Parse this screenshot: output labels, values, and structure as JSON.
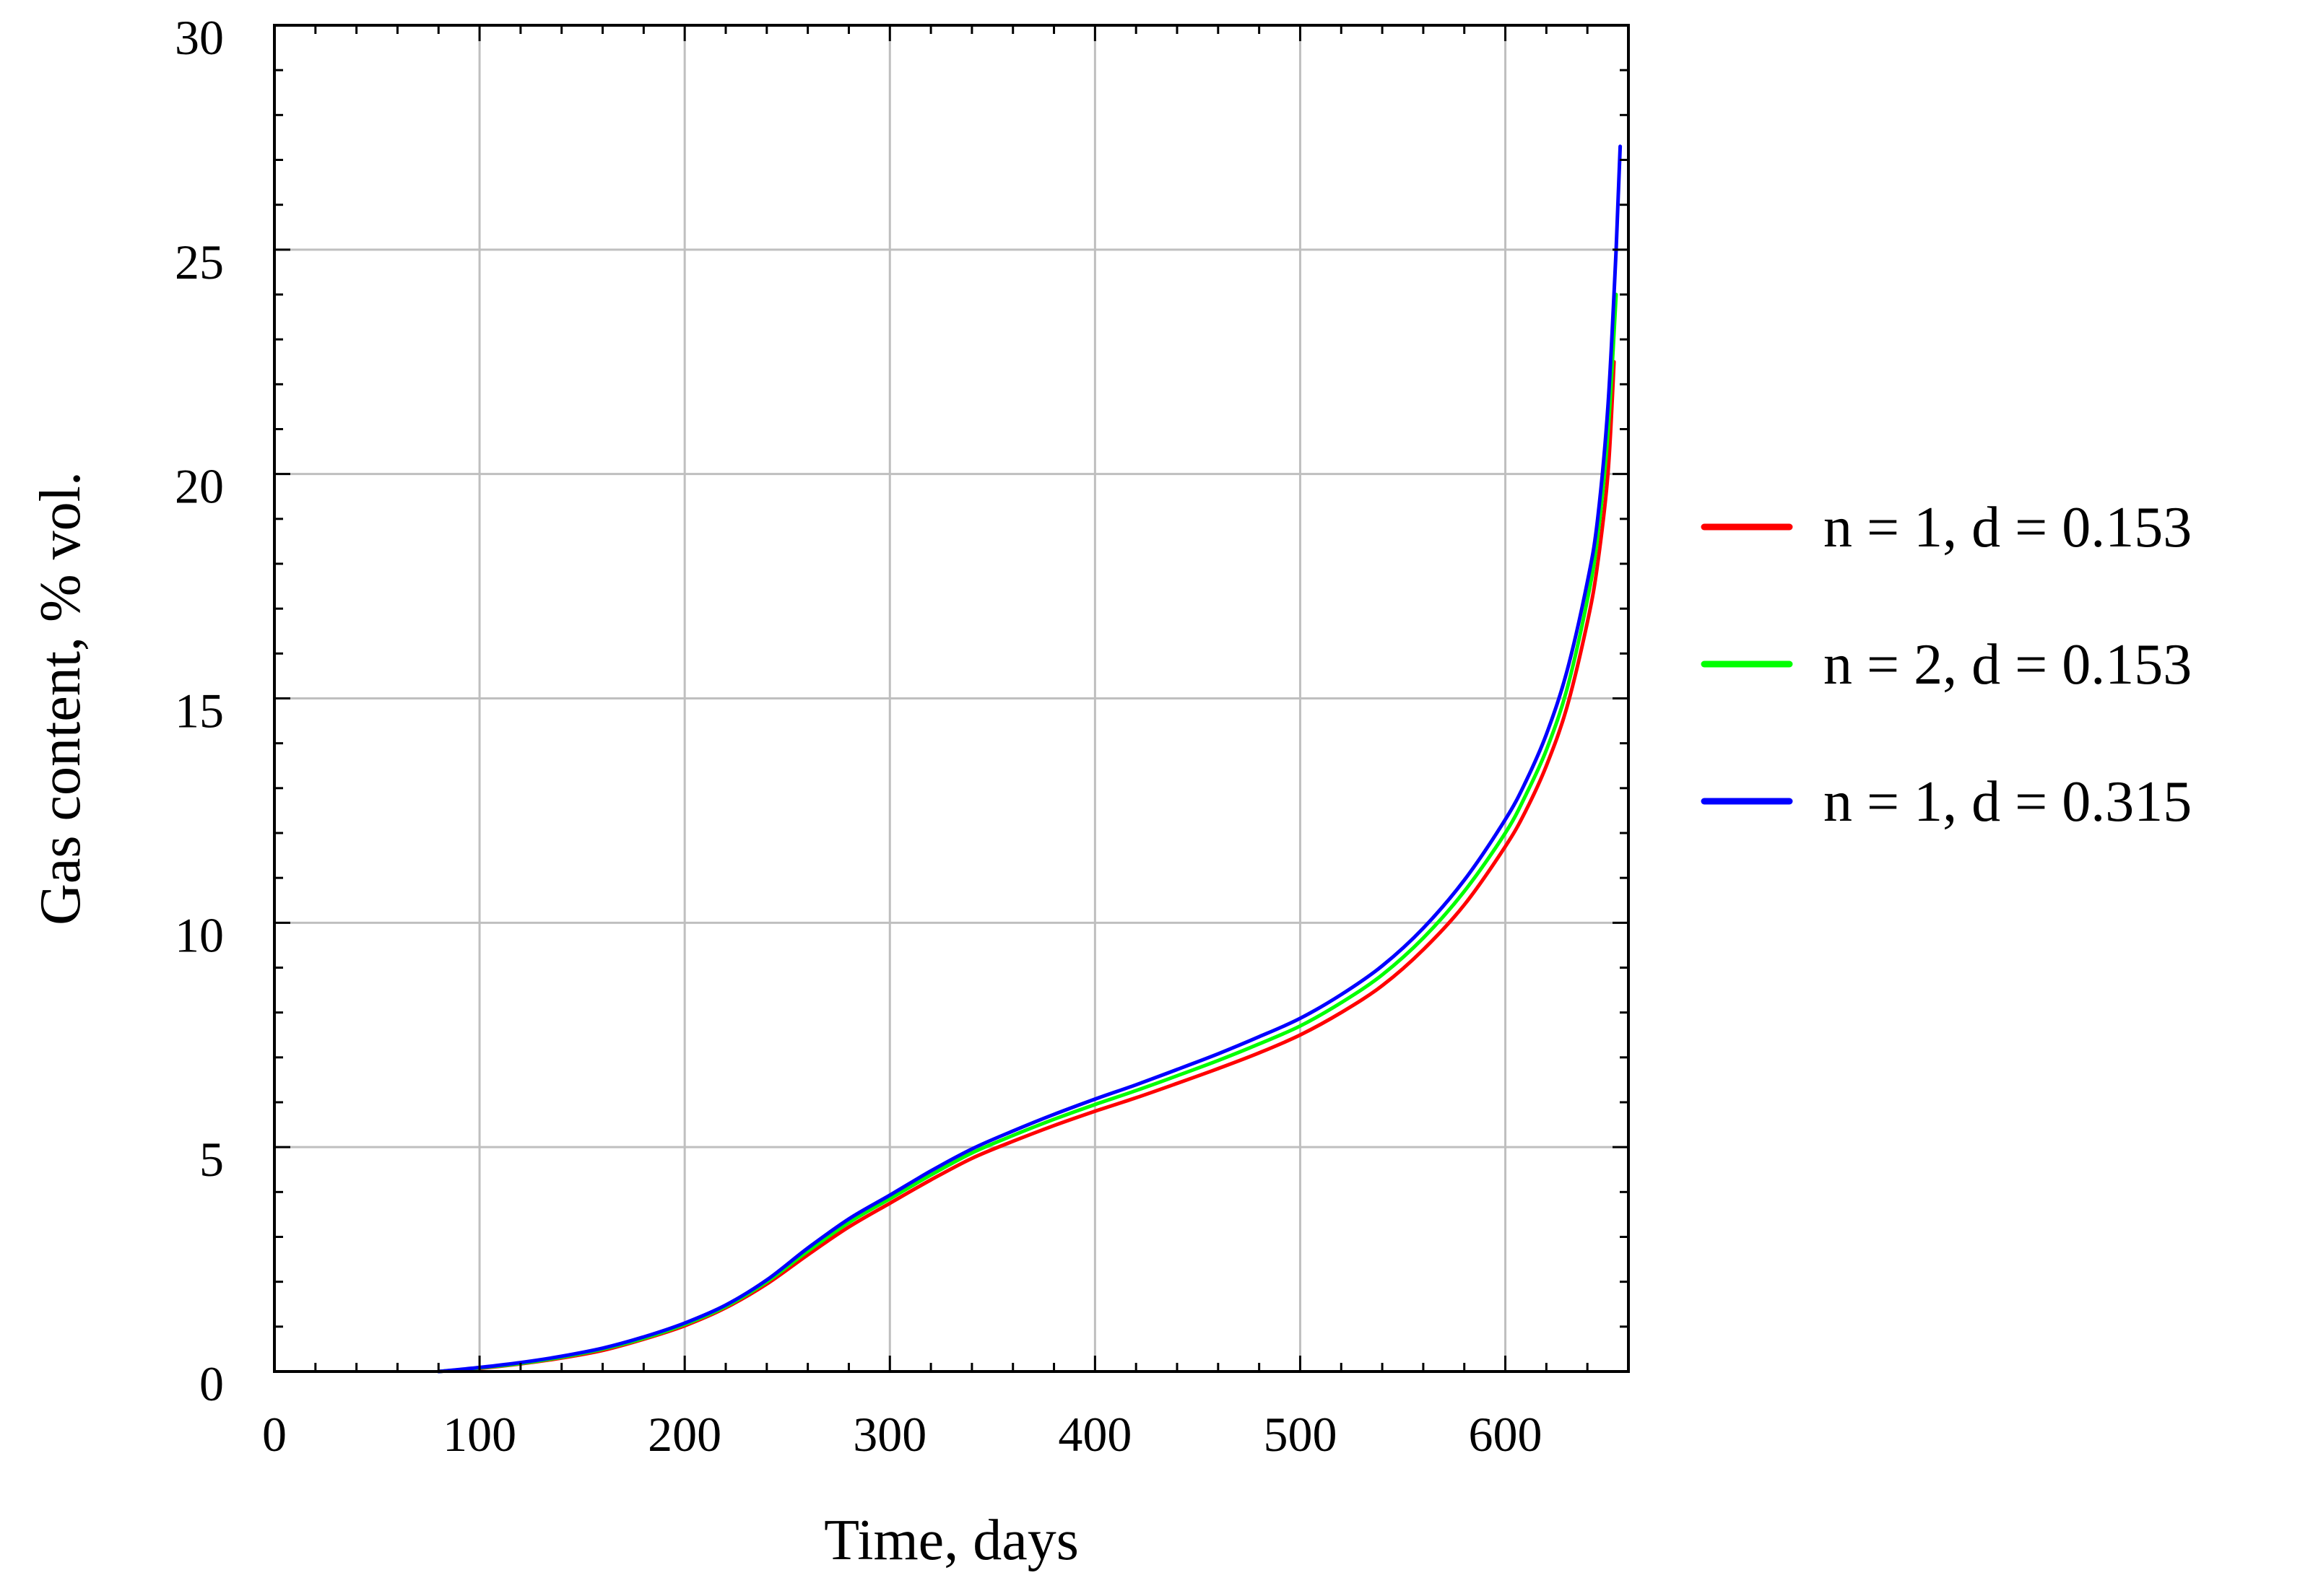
{
  "chart_data": {
    "type": "line",
    "title": "",
    "xlabel": "Time, days",
    "ylabel": "Gas content, % vol.",
    "xlim": [
      0,
      660
    ],
    "ylim": [
      0,
      30
    ],
    "xticks": [
      0,
      100,
      200,
      300,
      400,
      500,
      600
    ],
    "yticks": [
      0,
      5,
      10,
      15,
      20,
      25,
      30
    ],
    "grid": true,
    "legend_position": "right",
    "series": [
      {
        "name": "n = 1, d = 0.153",
        "color": "#ff0000",
        "x": [
          80,
          100,
          120,
          140,
          160,
          180,
          200,
          220,
          240,
          260,
          280,
          300,
          320,
          340,
          360,
          380,
          400,
          420,
          440,
          460,
          480,
          500,
          520,
          540,
          560,
          580,
          600,
          610,
          620,
          630,
          640,
          645,
          650,
          653
        ],
        "y": [
          0,
          0.07,
          0.17,
          0.3,
          0.47,
          0.72,
          1.02,
          1.42,
          1.95,
          2.6,
          3.22,
          3.75,
          4.27,
          4.75,
          5.13,
          5.48,
          5.8,
          6.1,
          6.42,
          6.75,
          7.1,
          7.5,
          8.0,
          8.6,
          9.4,
          10.4,
          11.7,
          12.5,
          13.5,
          14.8,
          16.7,
          18.0,
          20.0,
          22.5
        ]
      },
      {
        "name": "n = 2, d = 0.153",
        "color": "#00ff00",
        "x": [
          80,
          100,
          120,
          140,
          160,
          180,
          200,
          220,
          240,
          260,
          280,
          300,
          320,
          340,
          360,
          380,
          400,
          420,
          440,
          460,
          480,
          500,
          520,
          540,
          560,
          580,
          600,
          610,
          620,
          630,
          640,
          645,
          650,
          654
        ],
        "y": [
          0,
          0.08,
          0.18,
          0.32,
          0.5,
          0.74,
          1.05,
          1.45,
          2.0,
          2.68,
          3.32,
          3.85,
          4.38,
          4.87,
          5.26,
          5.62,
          5.95,
          6.26,
          6.59,
          6.93,
          7.3,
          7.7,
          8.22,
          8.84,
          9.66,
          10.7,
          12.0,
          12.85,
          13.85,
          15.2,
          17.2,
          18.6,
          20.9,
          24.0
        ]
      },
      {
        "name": "n = 1, d = 0.315",
        "color": "#0000ff",
        "x": [
          80,
          100,
          120,
          140,
          160,
          180,
          200,
          220,
          240,
          260,
          280,
          300,
          320,
          340,
          360,
          380,
          400,
          420,
          440,
          460,
          480,
          500,
          520,
          540,
          560,
          580,
          600,
          610,
          620,
          630,
          640,
          645,
          650,
          654,
          656
        ],
        "y": [
          0,
          0.09,
          0.2,
          0.34,
          0.52,
          0.77,
          1.08,
          1.48,
          2.04,
          2.75,
          3.4,
          3.93,
          4.47,
          4.96,
          5.36,
          5.73,
          6.07,
          6.39,
          6.73,
          7.08,
          7.46,
          7.87,
          8.4,
          9.04,
          9.88,
          10.95,
          12.3,
          13.15,
          14.2,
          15.6,
          17.6,
          19.0,
          21.5,
          25.0,
          27.3
        ]
      }
    ]
  }
}
